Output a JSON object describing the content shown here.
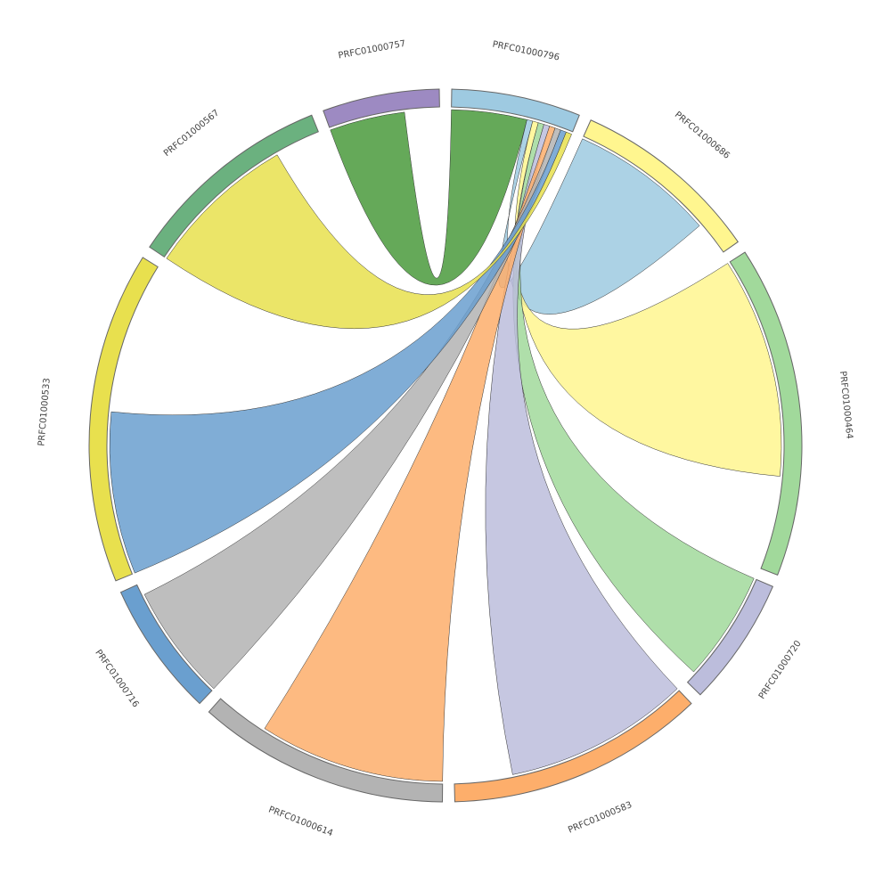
{
  "chart_data": {
    "type": "chord",
    "nodes": [
      {
        "name": "PRFC01000796",
        "value": 21,
        "color": "#9ecae1"
      },
      {
        "name": "PRFC01000686",
        "value": 31,
        "color": "#fff68f"
      },
      {
        "name": "PRFC01000464",
        "value": 54,
        "color": "#a1d99b"
      },
      {
        "name": "PRFC01000720",
        "value": 21,
        "color": "#bcbddc"
      },
      {
        "name": "PRFC01000583",
        "value": 42,
        "color": "#fdae6b"
      },
      {
        "name": "PRFC01000614",
        "value": 41,
        "color": "#b3b3b3"
      },
      {
        "name": "PRFC01000716",
        "value": 22,
        "color": "#6a9fcf"
      },
      {
        "name": "PRFC01000533",
        "value": 54,
        "color": "#e8e04e"
      },
      {
        "name": "PRFC01000567",
        "value": 34,
        "color": "#6bb17f"
      },
      {
        "name": "PRFC01000757",
        "value": 19,
        "color": "#9d8ac2"
      }
    ],
    "links": [
      {
        "source": 9,
        "target": 0,
        "source_value": 13,
        "target_value": 13,
        "color": "#4a9a3c"
      },
      {
        "source": 0,
        "target": 1,
        "source_value": 1,
        "target_value": 25,
        "color": "#9ecae1"
      },
      {
        "source": 0,
        "target": 2,
        "source_value": 1,
        "target_value": 38,
        "color": "#fff68f"
      },
      {
        "source": 0,
        "target": 3,
        "source_value": 1,
        "target_value": 19,
        "color": "#a1d99b"
      },
      {
        "source": 0,
        "target": 4,
        "source_value": 1,
        "target_value": 32,
        "color": "#bcbddc"
      },
      {
        "source": 0,
        "target": 5,
        "source_value": 1,
        "target_value": 32,
        "color": "#fdae6b"
      },
      {
        "source": 0,
        "target": 6,
        "source_value": 1,
        "target_value": 20,
        "color": "#b3b3b3"
      },
      {
        "source": 0,
        "target": 7,
        "source_value": 1,
        "target_value": 28,
        "color": "#6a9fcf"
      },
      {
        "source": 0,
        "target": 8,
        "source_value": 1,
        "target_value": 26,
        "color": "#e8e04e"
      }
    ]
  }
}
